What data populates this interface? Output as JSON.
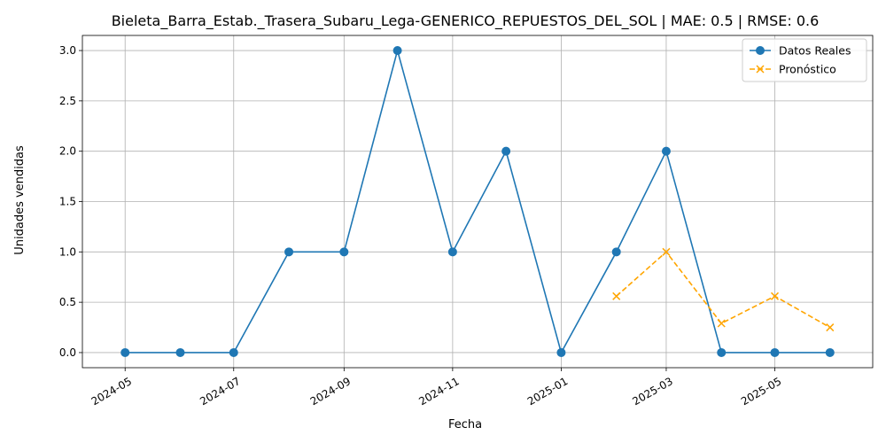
{
  "chart_data": {
    "type": "line",
    "title": "Bieleta_Barra_Estab._Trasera_Subaru_Lega-GENERICO_REPUESTOS_DEL_SOL | MAE: 0.5 | RMSE: 0.6",
    "xlabel": "Fecha",
    "ylabel": "Unidades vendidas",
    "x_type": "date",
    "xlim": [
      "2024-04-07",
      "2025-06-25"
    ],
    "ylim": [
      -0.15,
      3.15
    ],
    "grid": true,
    "legend_position": "top-right",
    "x_ticks": [
      "2024-05",
      "2024-07",
      "2024-09",
      "2024-11",
      "2025-01",
      "2025-03",
      "2025-05"
    ],
    "y_ticks": [
      "0.0",
      "0.5",
      "1.0",
      "1.5",
      "2.0",
      "2.5",
      "3.0"
    ],
    "series": [
      {
        "name": "Datos Reales",
        "color": "#1f77b4",
        "line_style": "solid",
        "marker": "circle",
        "points": [
          {
            "x": "2024-05-01",
            "y": 0
          },
          {
            "x": "2024-06-01",
            "y": 0
          },
          {
            "x": "2024-07-01",
            "y": 0
          },
          {
            "x": "2024-08-01",
            "y": 1
          },
          {
            "x": "2024-09-01",
            "y": 1
          },
          {
            "x": "2024-10-01",
            "y": 3
          },
          {
            "x": "2024-11-01",
            "y": 1
          },
          {
            "x": "2024-12-01",
            "y": 2
          },
          {
            "x": "2025-01-01",
            "y": 0
          },
          {
            "x": "2025-02-01",
            "y": 1
          },
          {
            "x": "2025-03-01",
            "y": 2
          },
          {
            "x": "2025-04-01",
            "y": 0
          },
          {
            "x": "2025-05-01",
            "y": 0
          },
          {
            "x": "2025-06-01",
            "y": 0
          }
        ]
      },
      {
        "name": "Pronóstico",
        "color": "#ffa500",
        "line_style": "dashed",
        "marker": "x",
        "points": [
          {
            "x": "2025-02-01",
            "y": 0.56
          },
          {
            "x": "2025-03-01",
            "y": 1.0
          },
          {
            "x": "2025-04-01",
            "y": 0.29
          },
          {
            "x": "2025-05-01",
            "y": 0.56
          },
          {
            "x": "2025-06-01",
            "y": 0.25
          }
        ]
      }
    ]
  }
}
